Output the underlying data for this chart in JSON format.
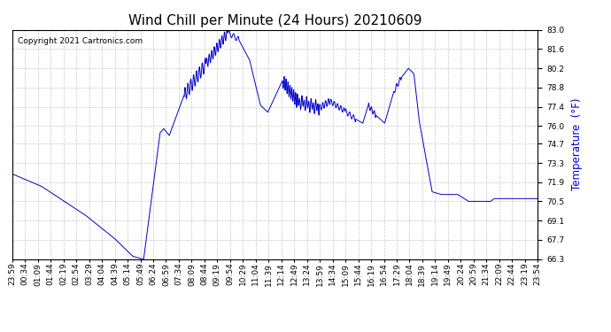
{
  "title": "Wind Chill per Minute (24 Hours) 20210609",
  "ylabel": "Temperature  (°F)",
  "copyright": "Copyright 2021 Cartronics.com",
  "line_color": "#0000CC",
  "ylabel_color": "#0000CC",
  "background_color": "#ffffff",
  "grid_color": "#bbbbbb",
  "ylim_min": 66.3,
  "ylim_max": 83.0,
  "yticks": [
    66.3,
    67.7,
    69.1,
    70.5,
    71.9,
    73.3,
    74.7,
    76.0,
    77.4,
    78.8,
    80.2,
    81.6,
    83.0
  ],
  "x_labels": [
    "23:59",
    "00:34",
    "01:09",
    "01:44",
    "02:19",
    "02:54",
    "03:29",
    "04:04",
    "04:39",
    "05:14",
    "05:49",
    "06:24",
    "06:59",
    "07:34",
    "08:09",
    "08:44",
    "09:19",
    "09:54",
    "10:29",
    "11:04",
    "11:39",
    "12:14",
    "12:49",
    "13:24",
    "13:59",
    "14:34",
    "15:09",
    "15:44",
    "16:19",
    "16:54",
    "17:29",
    "18:04",
    "18:39",
    "19:14",
    "19:49",
    "20:24",
    "20:59",
    "21:34",
    "22:09",
    "22:44",
    "23:19",
    "23:54"
  ],
  "title_fontsize": 11,
  "tick_fontsize": 6.5,
  "copyright_fontsize": 6.5
}
